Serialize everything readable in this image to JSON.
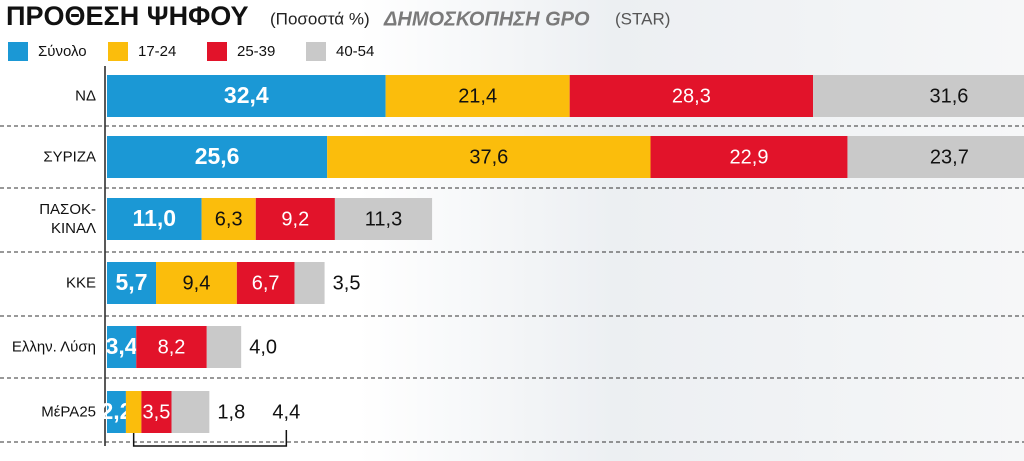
{
  "chart_data": {
    "type": "stacked-hbar",
    "title": "ΠΡΟΘΕΣΗ ΨΗΦΟΥ",
    "subtitle": "(Ποσοστά %)",
    "source": "ΔΗΜΟΣΚΟΠΗΣΗ GPO",
    "source_note": "(STAR)",
    "categories": [
      "ΝΔ",
      "ΣΥΡΙΖΑ",
      "ΠΑΣΟΚ-ΚΙΝΑΛ",
      "ΚΚΕ",
      "Ελλην. Λύση",
      "ΜέΡΑ25"
    ],
    "series": [
      {
        "name": "Σύνολο",
        "color": "#1b98d5",
        "values": [
          32.4,
          25.6,
          11.0,
          5.7,
          3.4,
          2.2
        ],
        "value_labels": [
          "32,4",
          "25,6",
          "11,0",
          "5,7",
          "3,4",
          "2,2"
        ]
      },
      {
        "name": "17-24",
        "color": "#fbbd0c",
        "values": [
          21.4,
          37.6,
          6.3,
          9.4,
          0,
          1.8
        ],
        "value_labels": [
          "21,4",
          "37,6",
          "6,3",
          "9,4",
          null,
          "1,8"
        ]
      },
      {
        "name": "25-39",
        "color": "#e2132a",
        "values": [
          28.3,
          22.9,
          9.2,
          6.7,
          8.2,
          3.5
        ],
        "value_labels": [
          "28,3",
          "22,9",
          "9,2",
          "6,7",
          "8,2",
          "3,5"
        ]
      },
      {
        "name": "40-54",
        "color": "#c9c9c9",
        "values": [
          31.6,
          23.7,
          11.3,
          3.5,
          4.0,
          4.4
        ],
        "value_labels": [
          "31,6",
          "23,7",
          "11,3",
          "3,5",
          "4,0",
          "4,4"
        ]
      }
    ]
  }
}
